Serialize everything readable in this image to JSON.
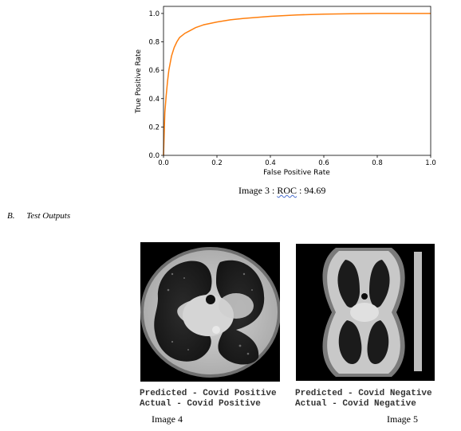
{
  "chart_data": {
    "type": "line",
    "xlabel": "False Positive Rate",
    "ylabel": "True Positive Rate",
    "xlim": [
      0.0,
      1.0
    ],
    "ylim": [
      0.0,
      1.05
    ],
    "xticks": [
      "0.0",
      "0.2",
      "0.4",
      "0.6",
      "0.8",
      "1.0"
    ],
    "yticks": [
      "0.0",
      "0.2",
      "0.4",
      "0.6",
      "0.8",
      "1.0"
    ],
    "grid": false,
    "color": "#ff7f0e",
    "series": [
      {
        "x": [
          0.0,
          0.002,
          0.005,
          0.01,
          0.015,
          0.02,
          0.03,
          0.04,
          0.05,
          0.06,
          0.08,
          0.1,
          0.12,
          0.15,
          0.2,
          0.25,
          0.3,
          0.4,
          0.5,
          0.6,
          0.7,
          0.8,
          0.9,
          1.0
        ],
        "y": [
          0.0,
          0.12,
          0.3,
          0.42,
          0.52,
          0.6,
          0.7,
          0.76,
          0.8,
          0.83,
          0.86,
          0.88,
          0.9,
          0.92,
          0.94,
          0.955,
          0.965,
          0.98,
          0.99,
          0.995,
          0.998,
          1.0,
          1.0,
          1.0
        ]
      }
    ]
  },
  "caption_top": {
    "prefix": "Image 3 : ",
    "roc": "ROC",
    "suffix": " : 94.69"
  },
  "section": {
    "letter": "B.",
    "title": "Test Outputs"
  },
  "outputs": [
    {
      "predicted": "Predicted - Covid Positive",
      "actual": "Actual - Covid Positive",
      "caption": "Image 4"
    },
    {
      "predicted": "Predicted - Covid Negative",
      "actual": "Actual - Covid Negative",
      "caption": "Image 5"
    }
  ]
}
